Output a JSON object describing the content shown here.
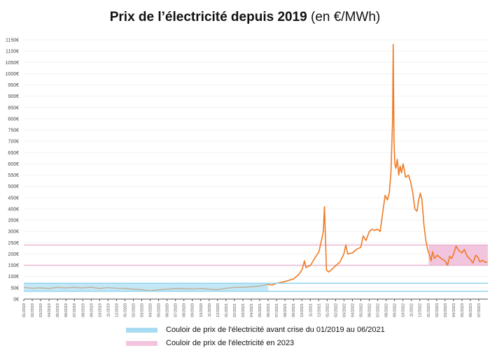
{
  "chart_data": {
    "type": "line",
    "title": "Prix de l’électricité depuis 2019",
    "subtitle": "(en €/MWh)",
    "ylim": [
      0,
      1150
    ],
    "y_tick_step": 50,
    "y_tick_suffix": "€",
    "grid": true,
    "x_tick_labels": [
      "01/2019",
      "02/2019",
      "03/2019",
      "04/2019",
      "05/2019",
      "06/2019",
      "07/2019",
      "08/2019",
      "09/2019",
      "10/2019",
      "11/2019",
      "12/2019",
      "01/2020",
      "02/2020",
      "03/2020",
      "04/2020",
      "05/2020",
      "06/2020",
      "07/2020",
      "08/2020",
      "09/2020",
      "10/2020",
      "11/2020",
      "12/2020",
      "01/2021",
      "02/2021",
      "03/2021",
      "04/2021",
      "05/2021",
      "06/2021",
      "07/2021",
      "08/2021",
      "09/2021",
      "10/2021",
      "11/2021",
      "12/2021",
      "01/2022",
      "02/2022",
      "03/2022",
      "04/2022",
      "05/2022",
      "06/2022",
      "07/2022",
      "08/2022",
      "09/2022",
      "10/2022",
      "11/2022",
      "12/2022",
      "01/2023",
      "02/2023",
      "03/2023",
      "04/2023",
      "05/2023",
      "06/2023",
      "07/2023"
    ],
    "series": [
      {
        "color": "#f07a22",
        "points": [
          [
            "2019-01-01",
            52
          ],
          [
            "2019-02-01",
            48
          ],
          [
            "2019-03-01",
            50
          ],
          [
            "2019-04-01",
            47
          ],
          [
            "2019-05-01",
            52
          ],
          [
            "2019-06-01",
            50
          ],
          [
            "2019-07-01",
            52
          ],
          [
            "2019-08-01",
            50
          ],
          [
            "2019-09-01",
            53
          ],
          [
            "2019-10-01",
            47
          ],
          [
            "2019-11-01",
            51
          ],
          [
            "2019-12-01",
            48
          ],
          [
            "2020-01-01",
            47
          ],
          [
            "2020-02-01",
            44
          ],
          [
            "2020-03-01",
            42
          ],
          [
            "2020-04-01",
            37
          ],
          [
            "2020-05-01",
            42
          ],
          [
            "2020-06-01",
            44
          ],
          [
            "2020-07-01",
            47
          ],
          [
            "2020-08-01",
            46
          ],
          [
            "2020-09-01",
            45
          ],
          [
            "2020-10-01",
            47
          ],
          [
            "2020-11-01",
            44
          ],
          [
            "2020-12-01",
            42
          ],
          [
            "2021-01-01",
            48
          ],
          [
            "2021-02-01",
            52
          ],
          [
            "2021-03-01",
            52
          ],
          [
            "2021-04-01",
            55
          ],
          [
            "2021-05-01",
            58
          ],
          [
            "2021-06-01",
            65
          ],
          [
            "2021-06-15",
            62
          ],
          [
            "2021-07-01",
            70
          ],
          [
            "2021-08-01",
            78
          ],
          [
            "2021-09-01",
            90
          ],
          [
            "2021-09-20",
            110
          ],
          [
            "2021-10-01",
            130
          ],
          [
            "2021-10-10",
            170
          ],
          [
            "2021-10-15",
            140
          ],
          [
            "2021-11-01",
            150
          ],
          [
            "2021-11-15",
            180
          ],
          [
            "2021-12-01",
            210
          ],
          [
            "2021-12-10",
            260
          ],
          [
            "2021-12-17",
            300
          ],
          [
            "2021-12-21",
            410
          ],
          [
            "2021-12-25",
            260
          ],
          [
            "2021-12-28",
            130
          ],
          [
            "2022-01-05",
            120
          ],
          [
            "2022-01-15",
            130
          ],
          [
            "2022-02-01",
            150
          ],
          [
            "2022-02-15",
            165
          ],
          [
            "2022-03-01",
            200
          ],
          [
            "2022-03-08",
            240
          ],
          [
            "2022-03-15",
            200
          ],
          [
            "2022-04-01",
            205
          ],
          [
            "2022-04-15",
            220
          ],
          [
            "2022-05-01",
            230
          ],
          [
            "2022-05-10",
            280
          ],
          [
            "2022-05-20",
            260
          ],
          [
            "2022-06-01",
            300
          ],
          [
            "2022-06-10",
            310
          ],
          [
            "2022-06-20",
            305
          ],
          [
            "2022-07-01",
            310
          ],
          [
            "2022-07-10",
            300
          ],
          [
            "2022-07-20",
            390
          ],
          [
            "2022-07-28",
            460
          ],
          [
            "2022-08-05",
            440
          ],
          [
            "2022-08-12",
            470
          ],
          [
            "2022-08-18",
            560
          ],
          [
            "2022-08-24",
            800
          ],
          [
            "2022-08-26",
            1130
          ],
          [
            "2022-08-29",
            700
          ],
          [
            "2022-09-01",
            600
          ],
          [
            "2022-09-05",
            580
          ],
          [
            "2022-09-10",
            620
          ],
          [
            "2022-09-15",
            550
          ],
          [
            "2022-09-20",
            590
          ],
          [
            "2022-09-25",
            560
          ],
          [
            "2022-10-01",
            600
          ],
          [
            "2022-10-10",
            540
          ],
          [
            "2022-10-20",
            550
          ],
          [
            "2022-10-28",
            520
          ],
          [
            "2022-11-05",
            470
          ],
          [
            "2022-11-12",
            400
          ],
          [
            "2022-11-20",
            390
          ],
          [
            "2022-11-26",
            440
          ],
          [
            "2022-12-02",
            470
          ],
          [
            "2022-12-08",
            440
          ],
          [
            "2022-12-15",
            330
          ],
          [
            "2022-12-22",
            260
          ],
          [
            "2022-12-28",
            220
          ],
          [
            "2023-01-03",
            200
          ],
          [
            "2023-01-10",
            170
          ],
          [
            "2023-01-15",
            210
          ],
          [
            "2023-01-22",
            180
          ],
          [
            "2023-02-01",
            195
          ],
          [
            "2023-02-15",
            180
          ],
          [
            "2023-03-01",
            170
          ],
          [
            "2023-03-10",
            150
          ],
          [
            "2023-03-18",
            190
          ],
          [
            "2023-03-25",
            180
          ],
          [
            "2023-04-01",
            200
          ],
          [
            "2023-04-10",
            235
          ],
          [
            "2023-04-20",
            215
          ],
          [
            "2023-05-01",
            205
          ],
          [
            "2023-05-10",
            220
          ],
          [
            "2023-05-20",
            190
          ],
          [
            "2023-06-01",
            175
          ],
          [
            "2023-06-10",
            160
          ],
          [
            "2023-06-20",
            195
          ],
          [
            "2023-06-28",
            185
          ],
          [
            "2023-07-05",
            165
          ],
          [
            "2023-07-15",
            172
          ],
          [
            "2023-07-25",
            163
          ],
          [
            "2023-08-01",
            165
          ]
        ]
      }
    ],
    "bands": [
      {
        "label": "Couloir de prix de l'électricité avant crise du 01/2019 au 06/2021",
        "low": 35,
        "high": 70,
        "from": "2019-01-01",
        "to": "2021-06-01",
        "color": "#9fd9f2"
      },
      {
        "label": "Couloir de prix de l'électricité en 2023",
        "low": 150,
        "high": 240,
        "from": "2023-01-01",
        "to": "2023-08-10",
        "color": "#f2c4de"
      }
    ],
    "legend_position": "bottom"
  }
}
